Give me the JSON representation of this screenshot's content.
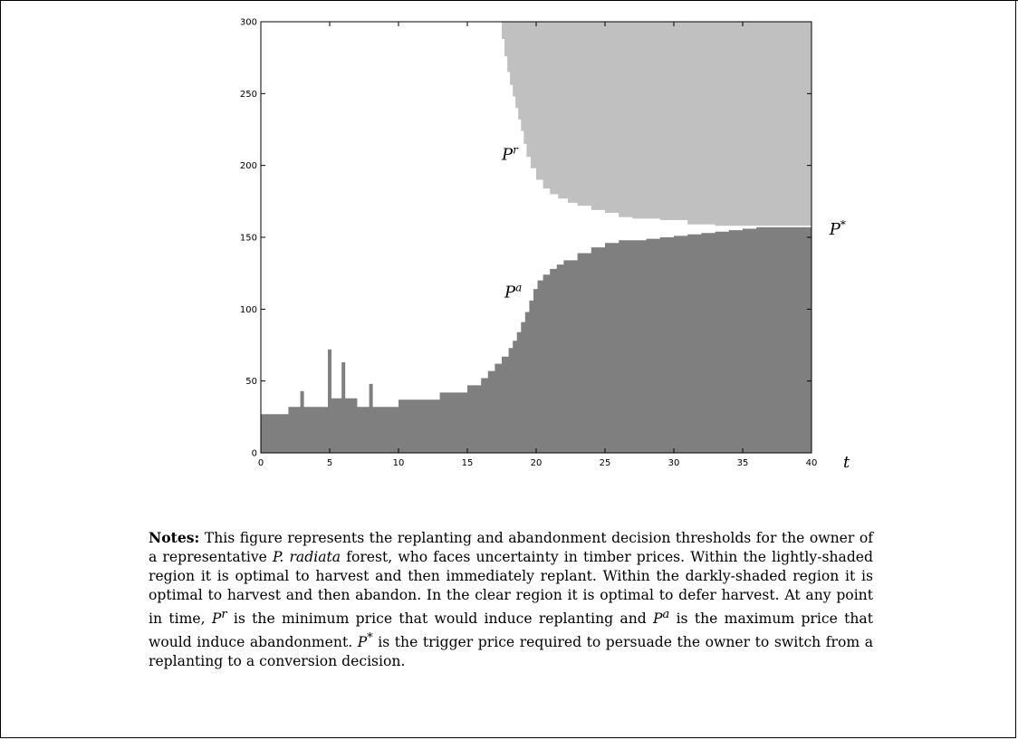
{
  "chart_data": {
    "type": "area",
    "title": "",
    "xlabel": "t",
    "ylabel": "",
    "xlim": [
      0,
      40
    ],
    "ylim": [
      0,
      300
    ],
    "x_ticks": [
      0,
      5,
      10,
      15,
      20,
      25,
      30,
      35,
      40
    ],
    "y_ticks": [
      0,
      50,
      100,
      150,
      200,
      250,
      300
    ],
    "grid": false,
    "colors": {
      "light_region": "#c0c0c0",
      "dark_region": "#7f7f7f",
      "clear_region": "#ffffff"
    },
    "series": [
      {
        "name": "Pr",
        "region": "light",
        "x": [
          17.3,
          17.5,
          17.7,
          17.9,
          18.1,
          18.3,
          18.5,
          18.7,
          18.9,
          19.1,
          19.3,
          19.6,
          20,
          20.5,
          21,
          21.6,
          22.3,
          23,
          24,
          25,
          26,
          27,
          28,
          29,
          30,
          31,
          32,
          33,
          34,
          35,
          36,
          37,
          38,
          39,
          40
        ],
        "y": [
          300,
          288,
          276,
          265,
          256,
          248,
          240,
          232,
          224,
          215,
          206,
          198,
          190,
          184,
          180,
          177,
          174,
          172,
          169,
          167,
          164,
          163,
          163,
          162,
          162,
          159,
          159,
          158,
          158,
          158,
          158,
          158,
          158,
          158,
          158
        ]
      },
      {
        "name": "Pa",
        "region": "dark",
        "x": [
          0,
          1,
          2,
          3,
          4,
          5,
          6,
          7,
          8,
          9,
          10,
          11,
          12,
          13,
          14,
          15,
          16,
          16.5,
          17,
          17.5,
          18,
          18.3,
          18.6,
          18.9,
          19.2,
          19.5,
          19.8,
          20.1,
          20.5,
          21,
          21.5,
          22,
          23,
          24,
          25,
          26,
          27,
          28,
          29,
          30,
          31,
          32,
          33,
          34,
          35,
          36,
          37,
          38,
          39,
          40
        ],
        "y": [
          27,
          27,
          32,
          32,
          32,
          38,
          38,
          32,
          32,
          32,
          37,
          37,
          37,
          42,
          42,
          47,
          52,
          57,
          62,
          67,
          73,
          78,
          84,
          91,
          98,
          106,
          114,
          120,
          124,
          128,
          131,
          134,
          139,
          143,
          146,
          148,
          148,
          149,
          150,
          151,
          152,
          153,
          154,
          155,
          156,
          157,
          157,
          157,
          157,
          157
        ]
      }
    ],
    "spikes": [
      {
        "x": 3,
        "y": 43
      },
      {
        "x": 5,
        "y": 72
      },
      {
        "x": 6,
        "y": 63
      },
      {
        "x": 8,
        "y": 48
      }
    ],
    "annotations": [
      {
        "base": "P",
        "sup": "r",
        "x": 17.5,
        "y": 204
      },
      {
        "base": "P",
        "sup": "a",
        "x": 17.7,
        "y": 108
      },
      {
        "base": "P",
        "sup": "*",
        "x": 41.3,
        "y": 152
      }
    ]
  },
  "notes": {
    "label": "Notes:",
    "text1": " This figure represents the replanting and abandonment decision thresholds for the owner of a representative ",
    "species": "P. radiata",
    "text2": " forest, who faces uncertainty in timber prices. Within the lightly-shaded region it is optimal to harvest and then immediately replant. Within the darkly-shaded region it is optimal to harvest and then abandon. In the clear region it is optimal to defer harvest. At any point in time, ",
    "pr_base": "P",
    "pr_sup": "r",
    "text3": " is the minimum price that would induce replanting and ",
    "pa_base": "P",
    "pa_sup": "a",
    "text4": " is the maximum price that would induce abandonment. ",
    "ps_base": "P",
    "ps_sup": "*",
    "text5": " is the trigger price required to persuade the owner to switch from a replanting to a conversion decision."
  }
}
